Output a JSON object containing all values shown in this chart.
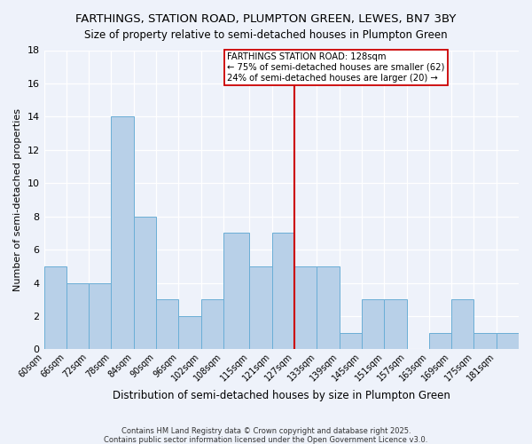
{
  "title": "FARTHINGS, STATION ROAD, PLUMPTON GREEN, LEWES, BN7 3BY",
  "subtitle": "Size of property relative to semi-detached houses in Plumpton Green",
  "xlabel": "Distribution of semi-detached houses by size in Plumpton Green",
  "ylabel": "Number of semi-detached properties",
  "bin_labels": [
    "60sqm",
    "66sqm",
    "72sqm",
    "78sqm",
    "84sqm",
    "90sqm",
    "96sqm",
    "102sqm",
    "108sqm",
    "115sqm",
    "121sqm",
    "127sqm",
    "133sqm",
    "139sqm",
    "145sqm",
    "151sqm",
    "157sqm",
    "163sqm",
    "169sqm",
    "175sqm",
    "181sqm"
  ],
  "bin_edges": [
    60,
    66,
    72,
    78,
    84,
    90,
    96,
    102,
    108,
    115,
    121,
    127,
    133,
    139,
    145,
    151,
    157,
    163,
    169,
    175,
    181,
    187
  ],
  "counts": [
    5,
    4,
    4,
    14,
    8,
    3,
    2,
    3,
    7,
    5,
    7,
    5,
    5,
    1,
    3,
    3,
    0,
    1,
    3,
    1,
    1
  ],
  "bar_color": "#b8d0e8",
  "bar_edge_color": "#6aaed6",
  "background_color": "#eef2fa",
  "grid_color": "#ffffff",
  "vline_x": 127,
  "vline_color": "#cc0000",
  "annotation_text": "FARTHINGS STATION ROAD: 128sqm\n← 75% of semi-detached houses are smaller (62)\n24% of semi-detached houses are larger (20) →",
  "annotation_box_color": "#ffffff",
  "annotation_box_edge": "#cc0000",
  "ylim": [
    0,
    18
  ],
  "yticks": [
    0,
    2,
    4,
    6,
    8,
    10,
    12,
    14,
    16,
    18
  ],
  "footnote1": "Contains HM Land Registry data © Crown copyright and database right 2025.",
  "footnote2": "Contains public sector information licensed under the Open Government Licence v3.0.",
  "title_fontsize": 9.5,
  "xlabel_fontsize": 8.5,
  "ylabel_fontsize": 8.0
}
